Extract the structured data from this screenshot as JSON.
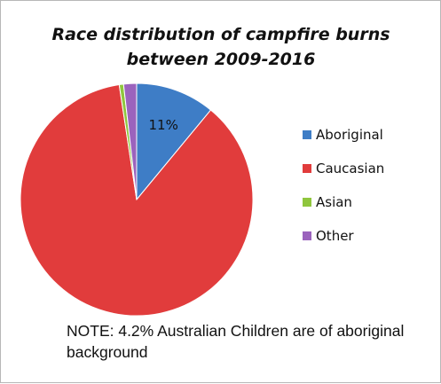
{
  "chart_data": {
    "type": "pie",
    "title": [
      "Race distribution of campfire burns",
      "between 2009-2016"
    ],
    "categories": [
      "Aboriginal",
      "Caucasian",
      "Asian",
      "Other"
    ],
    "values": [
      11,
      86.6,
      0.6,
      1.8
    ],
    "colors": [
      "#3e7dc6",
      "#e13c3c",
      "#8fc63d",
      "#9b63bd"
    ],
    "data_labels": [
      "11%",
      "",
      "",
      ""
    ],
    "start_angle_deg": 0,
    "direction": "clockwise",
    "legend_position": "right"
  },
  "note": "NOTE: 4.2% Australian Children are of aboriginal background"
}
